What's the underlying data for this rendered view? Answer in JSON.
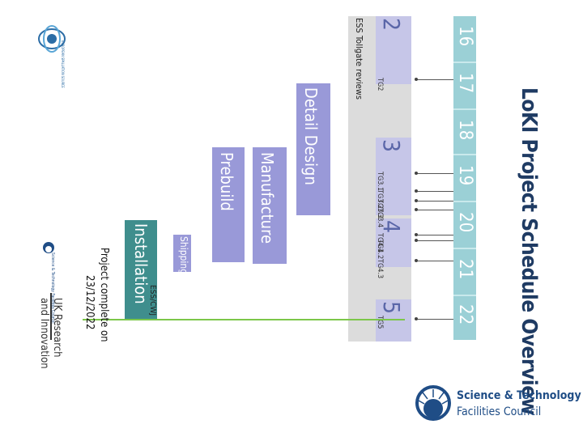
{
  "title": "LoKI Project Schedule Overview",
  "years": [
    "16",
    "17",
    "18",
    "19",
    "20",
    "21",
    "22"
  ],
  "tollgates": {
    "caption": "ESS Tollgate reviews",
    "groups": [
      {
        "num": "2",
        "labels": [
          "TG2"
        ]
      },
      {
        "num": "3",
        "labels": [
          "TG3.1",
          "TG3.2",
          "TG3.3",
          "TG3.4"
        ]
      },
      {
        "num": "4",
        "labels": [
          "TG4.1",
          "TG4.2",
          "TG4.3"
        ]
      },
      {
        "num": "5",
        "labels": [
          "TG5"
        ]
      }
    ]
  },
  "phases": {
    "detail_design": "Detail Design",
    "manufacture": "Manufacture",
    "prebuild": "Prebuild",
    "shipping": "Shipping",
    "installation": "Installation",
    "installation_sub": "ESS/CWJ"
  },
  "completion_note": {
    "line1": "Project complete on",
    "line2": "23/12/2022"
  },
  "logos": {
    "stfc_line1": "Science & Technology",
    "stfc_line2": "Facilities Council",
    "ukri_line1": "UK Research",
    "ukri_line2": "and Innovation",
    "ess_text": "EUROPEAN SPALLATION SOURCE",
    "council_text": "Science & Technology Facilities Council"
  },
  "colors": {
    "title": "#1f3b63",
    "years_band": "#9bd0d6",
    "phase_bar": "#9999d8",
    "installation_bar": "#3f8e8d",
    "completion_line": "#7cc74a",
    "tollgate_band": "#dcdcdc"
  }
}
